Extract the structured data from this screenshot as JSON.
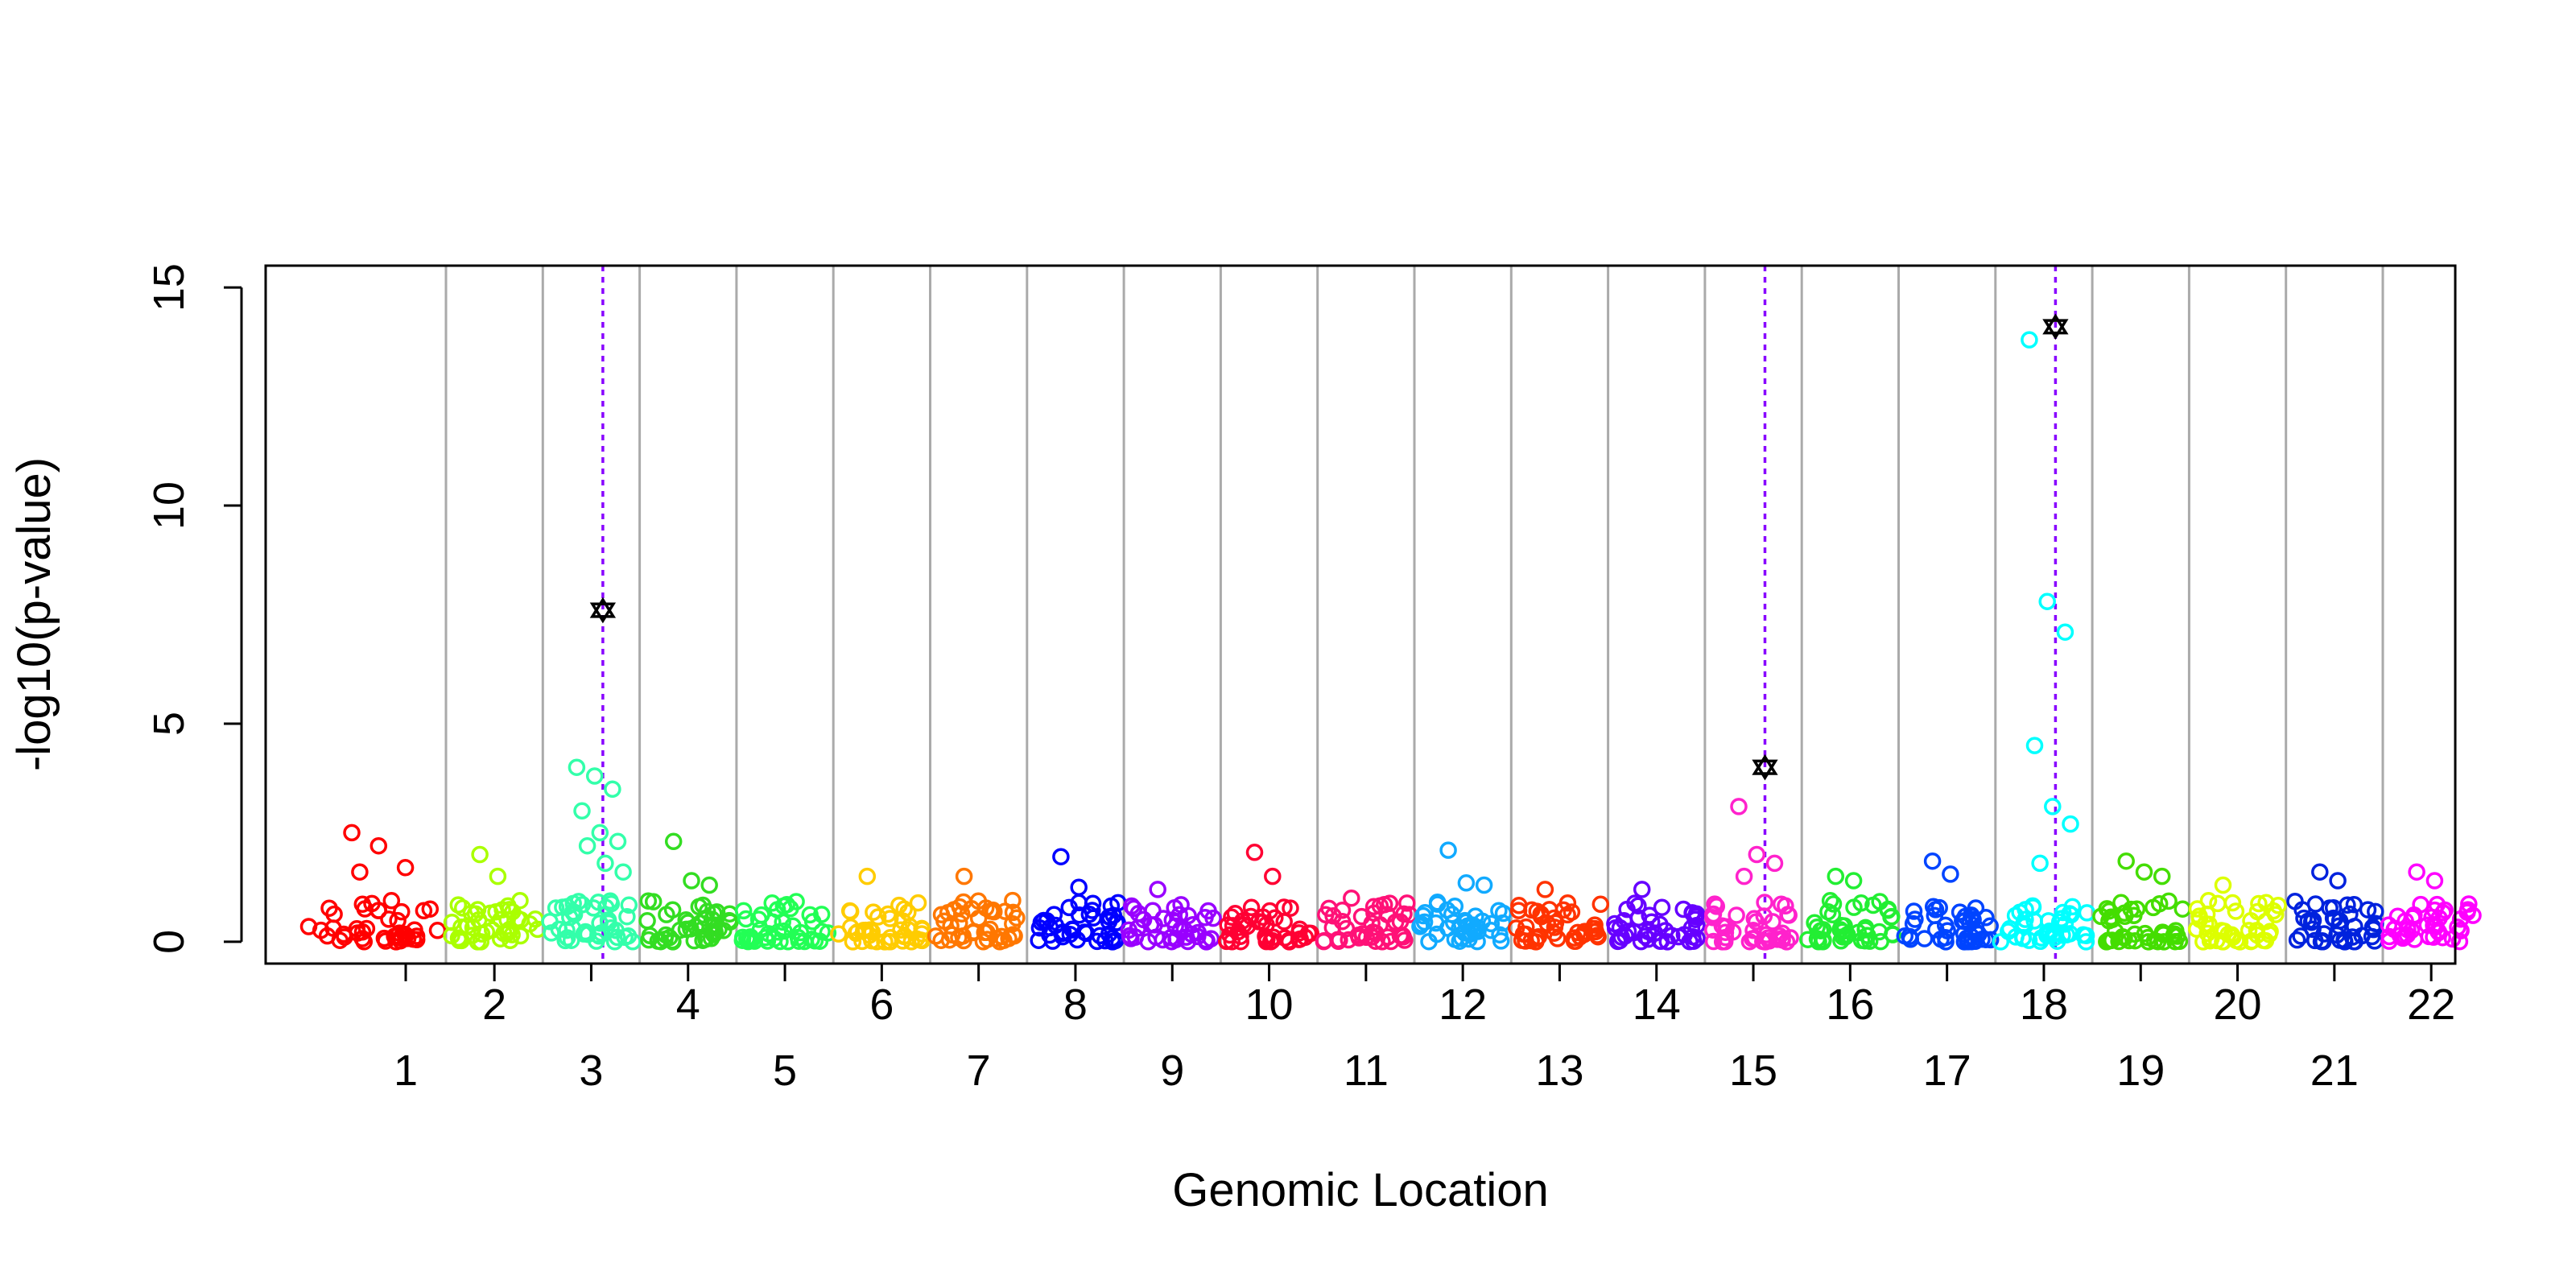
{
  "chart_data": {
    "type": "scatter",
    "title": "",
    "xlabel": "Genomic Location",
    "ylabel": "-log10(p-value)",
    "ylim": [
      -0.5,
      15.5
    ],
    "yticks": [
      0,
      5,
      10,
      15
    ],
    "grid": "vertical chromosome boundaries",
    "chromosomes": [
      "1",
      "2",
      "3",
      "4",
      "5",
      "6",
      "7",
      "8",
      "9",
      "10",
      "11",
      "12",
      "13",
      "14",
      "15",
      "16",
      "17",
      "18",
      "19",
      "20",
      "21",
      "22"
    ],
    "chromosome_colors": [
      "#ff0000",
      "#aaff00",
      "#33ffaa",
      "#33dd22",
      "#22ff55",
      "#ffcc00",
      "#ff7700",
      "#0000ff",
      "#9900ff",
      "#ff0033",
      "#ff1177",
      "#11aaff",
      "#ff3300",
      "#6600ff",
      "#ff22cc",
      "#22ee33",
      "#0044ff",
      "#00ffff",
      "#44dd00",
      "#ddff00",
      "#0022dd",
      "#ff00ff"
    ],
    "marker_color": "#000000",
    "highlight_line_color": "#8800ff",
    "highlights": [
      {
        "chromosome": "3",
        "position": 0.62,
        "value": 7.6
      },
      {
        "chromosome": "15",
        "position": 0.62,
        "value": 4.0
      },
      {
        "chromosome": "18",
        "position": 0.62,
        "value": 14.1
      }
    ],
    "peaks": {
      "1": [
        2.5,
        2.2,
        1.7,
        1.6
      ],
      "2": [
        2.0,
        1.5
      ],
      "3": [
        4.0,
        3.8,
        3.5,
        3.0,
        2.5,
        2.3,
        2.2,
        1.8,
        1.6
      ],
      "4": [
        2.3,
        1.4,
        1.3
      ],
      "6": [
        1.5
      ],
      "7": [
        1.5
      ],
      "8": [
        1.95,
        1.25
      ],
      "9": [
        1.2
      ],
      "10": [
        2.05,
        1.5
      ],
      "11": [
        1.0
      ],
      "12": [
        2.1,
        1.35,
        1.3
      ],
      "13": [
        1.2
      ],
      "14": [
        1.2
      ],
      "15": [
        3.1,
        2.0,
        1.8,
        1.5
      ],
      "16": [
        1.5,
        1.4
      ],
      "17": [
        1.85,
        1.55
      ],
      "18": [
        13.8,
        7.8,
        7.1,
        4.5,
        3.1,
        2.7,
        1.8
      ],
      "19": [
        1.85,
        1.6,
        1.5
      ],
      "20": [
        1.3
      ],
      "21": [
        1.6,
        1.4
      ],
      "22": [
        1.6,
        1.4
      ]
    }
  }
}
